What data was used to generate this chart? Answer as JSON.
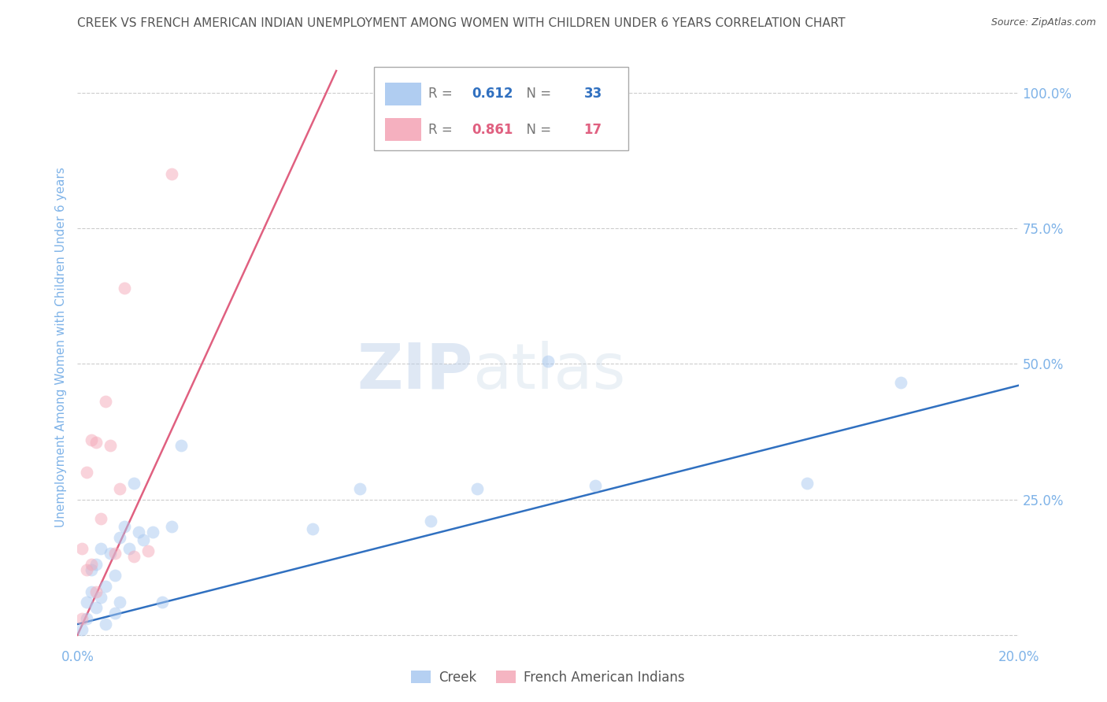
{
  "title": "CREEK VS FRENCH AMERICAN INDIAN UNEMPLOYMENT AMONG WOMEN WITH CHILDREN UNDER 6 YEARS CORRELATION CHART",
  "source": "Source: ZipAtlas.com",
  "ylabel": "Unemployment Among Women with Children Under 6 years",
  "watermark": "ZIPatlas",
  "creek_R": 0.612,
  "creek_N": 33,
  "fai_R": 0.861,
  "fai_N": 17,
  "creek_color": "#a8c8f0",
  "fai_color": "#f4a8b8",
  "creek_line_color": "#3070c0",
  "fai_line_color": "#e06080",
  "creek_x": [
    0.001,
    0.002,
    0.002,
    0.003,
    0.003,
    0.004,
    0.004,
    0.005,
    0.005,
    0.006,
    0.006,
    0.007,
    0.008,
    0.008,
    0.009,
    0.009,
    0.01,
    0.011,
    0.012,
    0.013,
    0.014,
    0.016,
    0.018,
    0.02,
    0.022,
    0.05,
    0.06,
    0.075,
    0.085,
    0.1,
    0.11,
    0.155,
    0.175
  ],
  "creek_y": [
    0.01,
    0.03,
    0.06,
    0.08,
    0.12,
    0.05,
    0.13,
    0.07,
    0.16,
    0.02,
    0.09,
    0.15,
    0.04,
    0.11,
    0.18,
    0.06,
    0.2,
    0.16,
    0.28,
    0.19,
    0.175,
    0.19,
    0.06,
    0.2,
    0.35,
    0.195,
    0.27,
    0.21,
    0.27,
    0.505,
    0.275,
    0.28,
    0.465
  ],
  "fai_x": [
    0.001,
    0.001,
    0.002,
    0.002,
    0.003,
    0.003,
    0.004,
    0.004,
    0.005,
    0.006,
    0.007,
    0.008,
    0.009,
    0.01,
    0.012,
    0.015,
    0.02
  ],
  "fai_y": [
    0.03,
    0.16,
    0.12,
    0.3,
    0.13,
    0.36,
    0.08,
    0.355,
    0.215,
    0.43,
    0.35,
    0.15,
    0.27,
    0.64,
    0.145,
    0.155,
    0.85
  ],
  "creek_line_x0": 0.0,
  "creek_line_x1": 0.2,
  "creek_line_y0": 0.02,
  "creek_line_y1": 0.46,
  "fai_line_x0": 0.0,
  "fai_line_x1": 0.055,
  "fai_line_y0": 0.0,
  "fai_line_y1": 1.04,
  "xmin": 0.0,
  "xmax": 0.2,
  "ymin": -0.02,
  "ymax": 1.08,
  "yticks": [
    0.0,
    0.25,
    0.5,
    0.75,
    1.0
  ],
  "yticklabels": [
    "",
    "25.0%",
    "50.0%",
    "75.0%",
    "100.0%"
  ],
  "xticks": [
    0.0,
    0.05,
    0.1,
    0.15,
    0.2
  ],
  "xticklabels": [
    "0.0%",
    "",
    "",
    "",
    "20.0%"
  ],
  "background_color": "#ffffff",
  "grid_color": "#cccccc",
  "title_color": "#555555",
  "tick_color": "#7fb3e8",
  "scatter_size": 130,
  "scatter_alpha": 0.5,
  "line_width": 1.8
}
